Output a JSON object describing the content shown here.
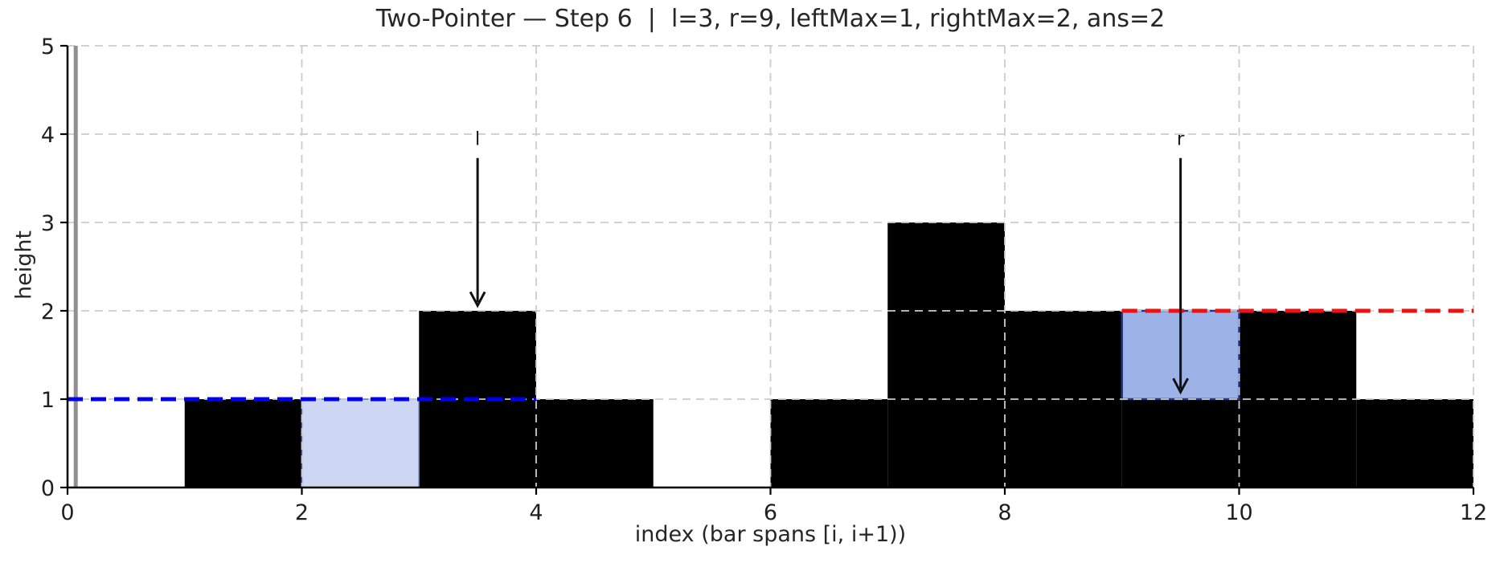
{
  "chart_data": {
    "type": "bar",
    "title": "Two-Pointer — Step 6  |  l=3, r=9, leftMax=1, rightMax=2, ans=2",
    "xlabel": "index (bar spans [i, i+1))",
    "ylabel": "height",
    "xlim": [
      0,
      12
    ],
    "ylim": [
      0,
      5
    ],
    "x_ticks": [
      0,
      2,
      4,
      6,
      8,
      10,
      12
    ],
    "y_ticks": [
      0,
      1,
      2,
      3,
      4,
      5
    ],
    "grid": true,
    "grid_color": "#cccccc",
    "bar_color": "#000000",
    "bar_indices": [
      0,
      1,
      2,
      3,
      4,
      5,
      6,
      7,
      8,
      9,
      10,
      11
    ],
    "heights": [
      0,
      1,
      0,
      2,
      1,
      0,
      1,
      3,
      2,
      1,
      2,
      1
    ],
    "water_cells": [
      {
        "index": 2,
        "from": 0,
        "to": 1,
        "fill": "#cdd7f4",
        "stroke": "#5a6fc0",
        "stroke_width": 1.5,
        "style": "settled"
      },
      {
        "index": 9,
        "from": 1,
        "to": 2,
        "fill": "#9db3e8",
        "stroke": "#24367d",
        "stroke_width": 2.5,
        "style": "current"
      }
    ],
    "left_max_line": {
      "value": 1,
      "y": 1,
      "x_start": 0,
      "x_end": 4,
      "color": "#0000ee",
      "label": "leftMax=1"
    },
    "right_max_line": {
      "value": 2,
      "y": 2,
      "x_start": 9,
      "x_end": 12,
      "color": "#ee1111",
      "label": "rightMax=2"
    },
    "zero_axvline": {
      "x": 0.07,
      "color": "#8f8f8f"
    },
    "pointers": [
      {
        "name": "l",
        "x": 3.5,
        "label_y": 3.95,
        "tail_y": 3.73,
        "tip_y": 2.06
      },
      {
        "name": "r",
        "x": 9.5,
        "label_y": 3.95,
        "tail_y": 3.73,
        "tip_y": 1.08
      }
    ],
    "state": {
      "step": 6,
      "l": 3,
      "r": 9,
      "leftMax": 1,
      "rightMax": 2,
      "ans": 2
    }
  }
}
